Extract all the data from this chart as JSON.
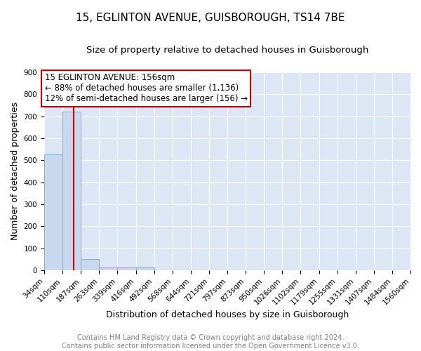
{
  "title": "15, EGLINTON AVENUE, GUISBOROUGH, TS14 7BE",
  "subtitle": "Size of property relative to detached houses in Guisborough",
  "xlabel": "Distribution of detached houses by size in Guisborough",
  "ylabel": "Number of detached properties",
  "bin_edges": [
    34,
    110,
    187,
    263,
    339,
    416,
    492,
    568,
    644,
    721,
    797,
    873,
    950,
    1026,
    1102,
    1179,
    1255,
    1331,
    1407,
    1484,
    1560
  ],
  "bar_heights": [
    525,
    720,
    50,
    12,
    12,
    12,
    0,
    0,
    0,
    0,
    0,
    0,
    0,
    0,
    0,
    0,
    0,
    0,
    0,
    0
  ],
  "bar_color": "#c8d8ee",
  "bar_edge_color": "#7aafd4",
  "property_size": 156,
  "red_line_color": "#cc0000",
  "annotation_line1": "15 EGLINTON AVENUE: 156sqm",
  "annotation_line2": "← 88% of detached houses are smaller (1,136)",
  "annotation_line3": "12% of semi-detached houses are larger (156) →",
  "annotation_box_color": "#ffffff",
  "annotation_border_color": "#cc0000",
  "ylim": [
    0,
    900
  ],
  "yticks": [
    0,
    100,
    200,
    300,
    400,
    500,
    600,
    700,
    800,
    900
  ],
  "background_color": "#dce6f5",
  "grid_color": "#ffffff",
  "footer_text": "Contains HM Land Registry data © Crown copyright and database right 2024.\nContains public sector information licensed under the Open Government Licence v3.0.",
  "title_fontsize": 11,
  "subtitle_fontsize": 9.5,
  "xlabel_fontsize": 9,
  "ylabel_fontsize": 9,
  "annotation_fontsize": 8.5,
  "footer_fontsize": 7,
  "tick_label_fontsize": 7.5
}
